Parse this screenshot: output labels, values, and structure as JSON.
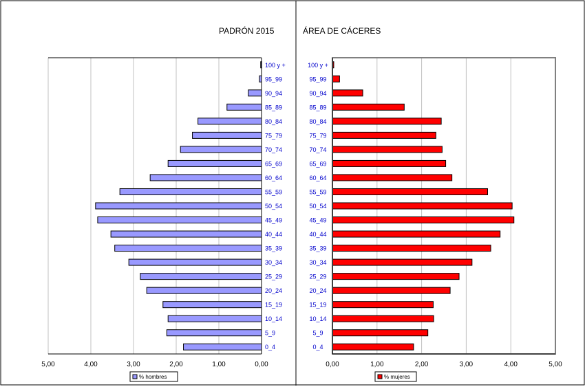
{
  "titles": {
    "left": "PADRÓN 2015",
    "right": "ÁREA DE CÁCERES"
  },
  "chart_data": {
    "type": "bar",
    "orientation": "horizontal",
    "categories": [
      "0_4",
      "5_9",
      "10_14",
      "15_19",
      "20_24",
      "25_29",
      "30_34",
      "35_39",
      "40_44",
      "45_49",
      "50_54",
      "55_59",
      "60_64",
      "65_69",
      "70_74",
      "75_79",
      "80_84",
      "85_89",
      "90_94",
      "95_99",
      "100 y +"
    ],
    "series": [
      {
        "name": "% hombres",
        "color": "#9999ff",
        "values": [
          1.83,
          2.22,
          2.19,
          2.31,
          2.69,
          2.84,
          3.11,
          3.44,
          3.53,
          3.84,
          3.89,
          3.32,
          2.61,
          2.19,
          1.9,
          1.62,
          1.49,
          0.81,
          0.31,
          0.05,
          0.02
        ]
      },
      {
        "name": "% mujeres",
        "color": "#ff0000",
        "values": [
          1.82,
          2.14,
          2.27,
          2.26,
          2.64,
          2.84,
          3.13,
          3.55,
          3.76,
          4.07,
          4.03,
          3.48,
          2.68,
          2.54,
          2.46,
          2.32,
          2.44,
          1.61,
          0.68,
          0.16,
          0.03
        ]
      }
    ],
    "xlim": [
      0,
      5
    ],
    "tick_labels": [
      "0,00",
      "1,00",
      "2,00",
      "3,00",
      "4,00",
      "5,00"
    ],
    "left_tick_labels": [
      "5,00",
      "4,00",
      "3,00",
      "2,00",
      "1,00",
      "0,00"
    ],
    "grid": true,
    "legend_position": "bottom"
  }
}
